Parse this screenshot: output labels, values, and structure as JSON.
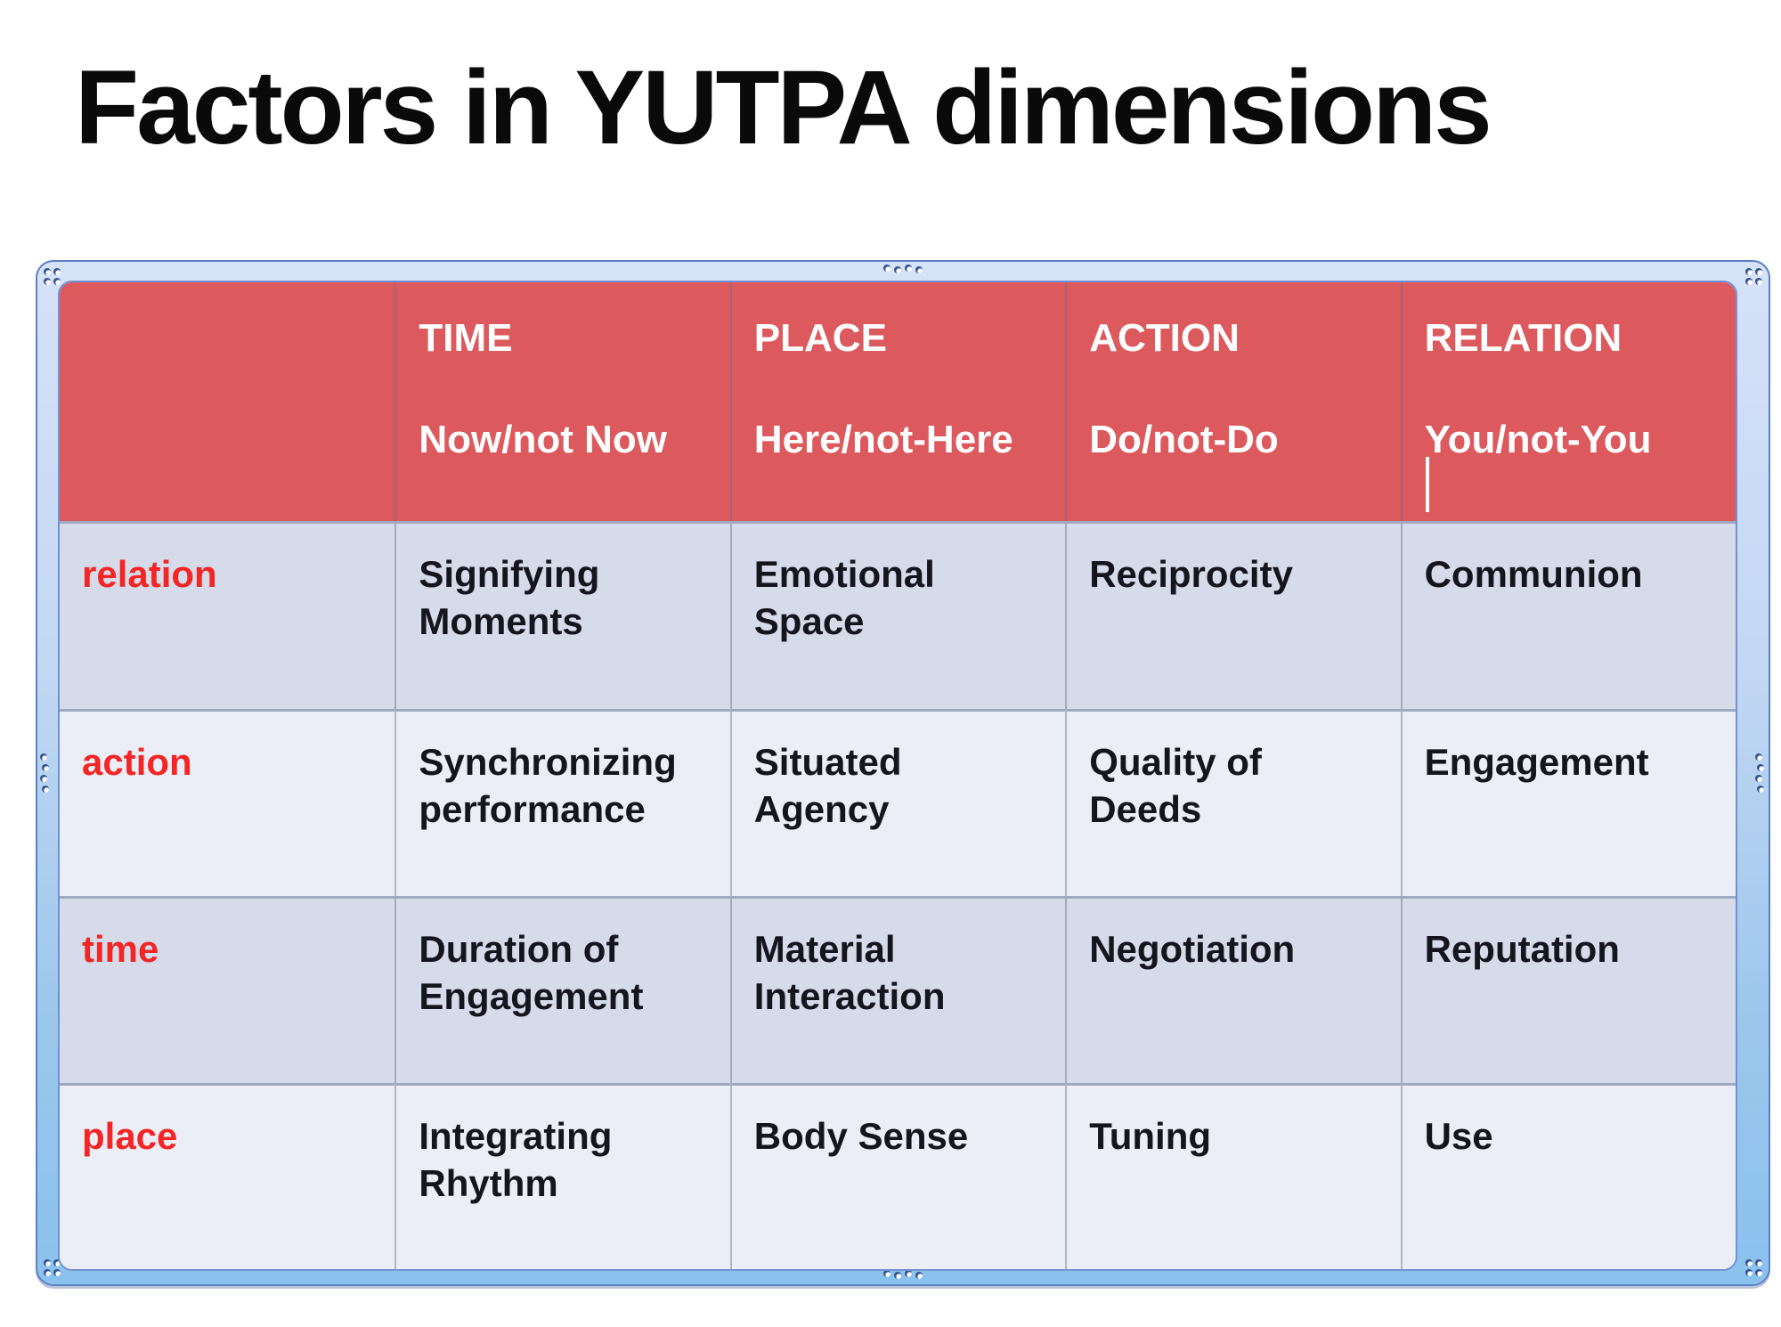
{
  "slide": {
    "title": "Factors in YUTPA dimensions"
  },
  "table": {
    "header": {
      "corner": "",
      "columns": [
        {
          "dimension": "TIME",
          "axis": "Now/not Now"
        },
        {
          "dimension": "PLACE",
          "axis": "Here/not-Here"
        },
        {
          "dimension": "ACTION",
          "axis": "Do/not-Do"
        },
        {
          "dimension": "RELATION",
          "axis": "You/not-You"
        }
      ]
    },
    "rows": [
      {
        "label": "relation",
        "cells": [
          "Signifying\nMoments",
          "Emotional\nSpace",
          "Reciprocity",
          "Communion"
        ]
      },
      {
        "label": "action",
        "cells": [
          "Synchronizing\nperformance",
          "Situated\nAgency",
          "Quality of\nDeeds",
          "Engagement"
        ]
      },
      {
        "label": "time",
        "cells": [
          "Duration of\nEngagement",
          "Material\nInteraction",
          "Negotiation",
          "Reputation"
        ]
      },
      {
        "label": "place",
        "cells": [
          "Integrating\nRhythm",
          "Body Sense",
          "Tuning",
          "Use"
        ]
      }
    ]
  },
  "colors": {
    "title_text": "#0a0a0a",
    "header_bg": "#dc5a5e",
    "header_text": "#ffffff",
    "row_label": "#f42525",
    "cell_text": "#15151e",
    "row_bg_a": "#d5dbe9",
    "row_bg_b": "#ebeef6",
    "frame_border": "#5d80c2",
    "table_border": "#7092d4",
    "caret": "#ffffff"
  }
}
